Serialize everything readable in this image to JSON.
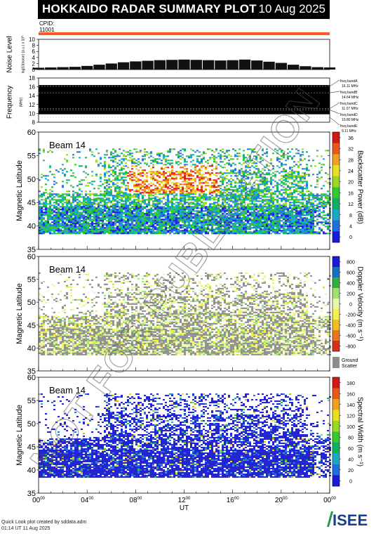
{
  "header": {
    "title": "HOKKAIDO RADAR SUMMARY PLOT",
    "date": "10 Aug 2025",
    "cpid_label": "CPID:",
    "cpid_value": "11001",
    "accent_color": "#ff5a1e"
  },
  "footer": {
    "credit_line1": "Quick Look plot created by sddata.adm",
    "credit_line2": "01:14 UT 11 Aug 2025",
    "logo_text": "ISEE"
  },
  "watermark": "NOT FOR PUBLICATION",
  "chart_data": [
    {
      "type": "bar",
      "ylabel": "Noise Level",
      "ylabel2": "log10(noise) (a.u.) x 10^",
      "ylim": [
        0,
        10
      ],
      "yticks": [
        "0",
        "2",
        "4",
        "6",
        "8",
        "10"
      ],
      "x": [
        0,
        1,
        2,
        3,
        4,
        5,
        6,
        7,
        8,
        9,
        10,
        11,
        12,
        13,
        14,
        15,
        16,
        17,
        18,
        19,
        20,
        21,
        22,
        23,
        24
      ],
      "values": [
        0.6,
        0.7,
        0.8,
        0.9,
        1.2,
        1.6,
        2.0,
        2.4,
        2.7,
        2.9,
        3.1,
        3.2,
        3.3,
        3.2,
        3.1,
        3.0,
        3.1,
        3.3,
        3.0,
        2.6,
        2.2,
        1.6,
        1.1,
        0.8,
        0.7
      ]
    },
    {
      "type": "bar",
      "ylabel": "Frequency",
      "unit": "(MHz)",
      "ylim": [
        8,
        18
      ],
      "yticks": [
        "8",
        "10",
        "12",
        "14",
        "16",
        "18"
      ],
      "bands": [
        {
          "label": "freq bandA",
          "value": "16.11 MHz",
          "mhz": 16.11
        },
        {
          "label": "freq bandB",
          "value": "14.64 MHz",
          "mhz": 14.64
        },
        {
          "label": "freq bandC",
          "value": "11.07 MHz",
          "mhz": 11.07
        },
        {
          "label": "freq bandD",
          "value": "10.80 MHz",
          "mhz": 10.8
        },
        {
          "label": "freq bandE",
          "value": "9.11 MHz",
          "mhz": 9.11
        }
      ]
    },
    {
      "type": "heatmap",
      "beam": "Beam 14",
      "ylabel": "Magnetic Latitude",
      "ylim": [
        35,
        60
      ],
      "yticks": [
        "35",
        "40",
        "45",
        "50",
        "55",
        "60"
      ],
      "colorbar_label": "Backscatter Power (dB)",
      "colorbar_ticks": [
        "0",
        "4",
        "8",
        "12",
        "16",
        "20",
        "24",
        "28",
        "32",
        "36"
      ],
      "colors": [
        "#1a1ad8",
        "#1f6fe0",
        "#19a8c8",
        "#10b060",
        "#36c832",
        "#9cd820",
        "#e8e020",
        "#f0a020",
        "#e85818",
        "#d01818"
      ]
    },
    {
      "type": "heatmap",
      "beam": "Beam 14",
      "ylabel": "Magnetic Latitude",
      "ylim": [
        35,
        60
      ],
      "yticks": [
        "35",
        "40",
        "45",
        "50",
        "55",
        "60"
      ],
      "colorbar_label": "Doppler Velocity (m s⁻¹)",
      "colorbar_ticks": [
        "-800",
        "-600",
        "-400",
        "-200",
        "0",
        "200",
        "400",
        "600",
        "800"
      ],
      "ground_scatter_label": "Ground Scatter",
      "ground_scatter_color": "#8c8c8c",
      "colors": [
        "#d83018",
        "#e87820",
        "#f0c020",
        "#f0f050",
        "#e8f8b0",
        "#a0e070",
        "#30b040",
        "#1870c0",
        "#1a1ad8"
      ]
    },
    {
      "type": "heatmap",
      "beam": "Beam 14",
      "ylabel": "Magnetic Latitude",
      "ylim": [
        35,
        60
      ],
      "yticks": [
        "35",
        "40",
        "45",
        "50",
        "55",
        "60"
      ],
      "xlabel": "UT",
      "xticks": [
        "00",
        "04",
        "08",
        "12",
        "16",
        "20",
        "00"
      ],
      "xtick_sup": "00",
      "colorbar_label": "Spectral Width (m s⁻¹)",
      "colorbar_ticks": [
        "0",
        "20",
        "40",
        "60",
        "80",
        "100",
        "120",
        "140",
        "160",
        "180"
      ],
      "colors": [
        "#1a1ad8",
        "#1f6fe0",
        "#19a8c8",
        "#10b060",
        "#36c832",
        "#9cd820",
        "#e8e020",
        "#f0a020",
        "#e85818",
        "#d01818"
      ]
    }
  ]
}
